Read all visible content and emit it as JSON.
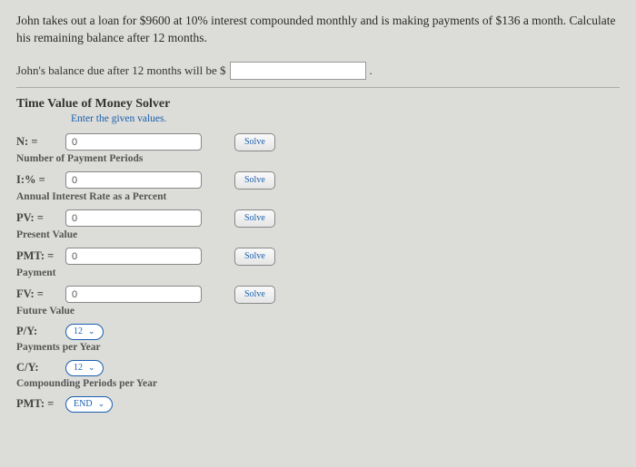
{
  "problem": {
    "text": "John takes out a loan for $9600 at 10% interest compounded monthly and is making payments of $136 a month. Calculate his remaining balance after 12 months.",
    "answer_prompt": "John's balance due after 12 months will be $",
    "answer_suffix": "."
  },
  "solver": {
    "title": "Time Value of Money Solver",
    "subtitle": "Enter the given values.",
    "solve_label": "Solve",
    "fields": {
      "n": {
        "label": "N: =",
        "value": "0",
        "desc": "Number of Payment Periods"
      },
      "i": {
        "label": "I:% =",
        "value": "0",
        "desc": "Annual Interest Rate as a Percent"
      },
      "pv": {
        "label": "PV: =",
        "value": "0",
        "desc": "Present Value"
      },
      "pmt": {
        "label": "PMT: =",
        "value": "0",
        "desc": "Payment"
      },
      "fv": {
        "label": "FV: =",
        "value": "0",
        "desc": "Future Value"
      },
      "py": {
        "label": "P/Y:",
        "value": "12",
        "desc": "Payments per Year"
      },
      "cy": {
        "label": "C/Y:",
        "value": "12",
        "desc": "Compounding Periods per Year"
      },
      "pmt_mode": {
        "label": "PMT: =",
        "value": "END"
      }
    }
  },
  "colors": {
    "background": "#dcdcd8",
    "link_blue": "#1a5fb0",
    "text": "#333333",
    "input_border": "#888888"
  }
}
